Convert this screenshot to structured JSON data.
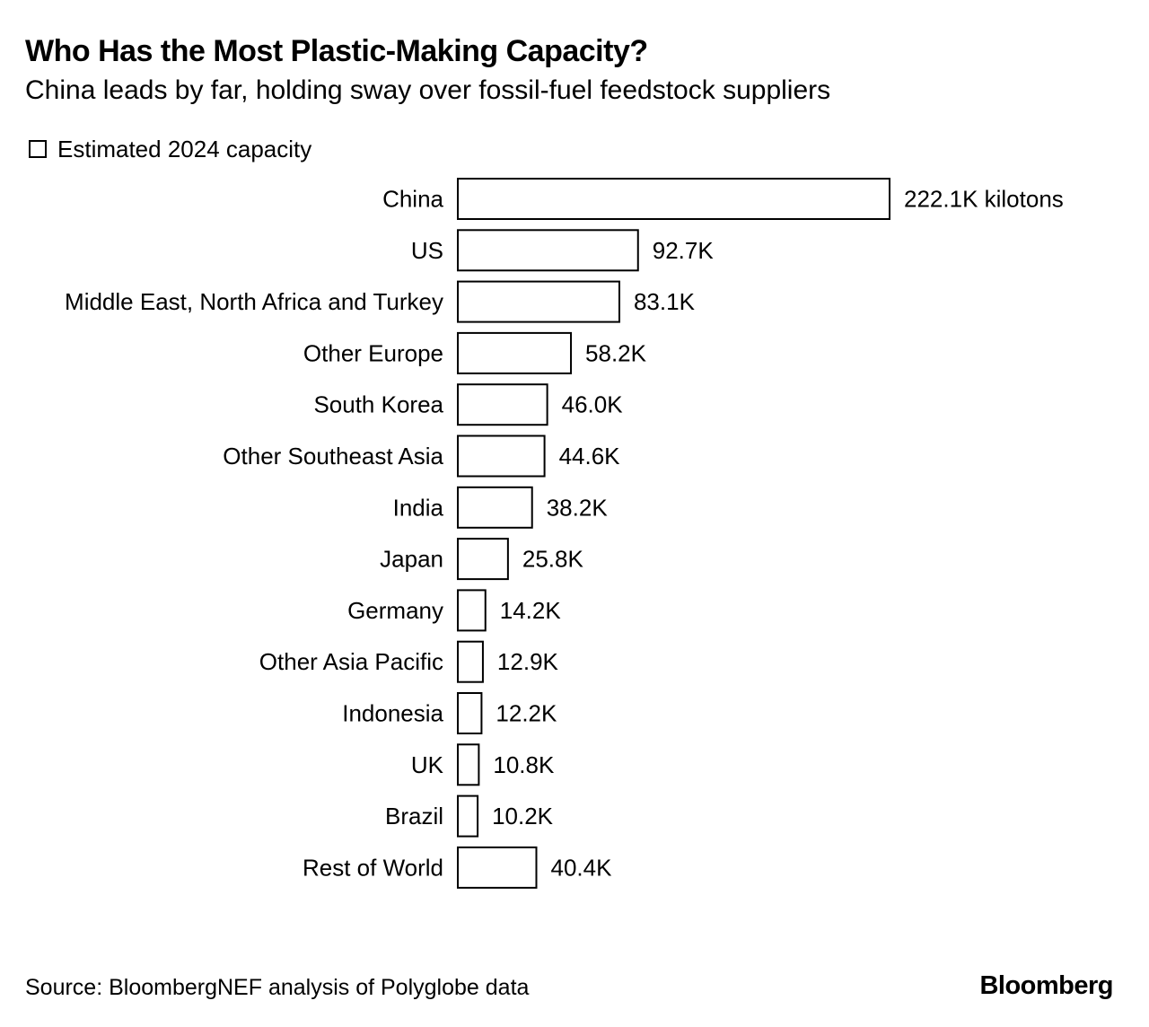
{
  "title": "Who Has the Most Plastic-Making Capacity?",
  "subtitle": "China leads by far, holding sway over fossil-fuel feedstock suppliers",
  "legend_label": "Estimated 2024 capacity",
  "source": "Source: BloombergNEF analysis of Polyglobe data",
  "brand": "Bloomberg",
  "colors": {
    "bar_fill": "#ffffff",
    "bar_stroke": "#000000",
    "text": "#000000",
    "background": "#ffffff"
  },
  "chart_data": {
    "type": "bar",
    "orientation": "horizontal",
    "title": "Who Has the Most Plastic-Making Capacity?",
    "subtitle": "China leads by far, holding sway over fossil-fuel feedstock suppliers",
    "unit": "kilotons",
    "categories": [
      "China",
      "US",
      "Middle East, North Africa and Turkey",
      "Other Europe",
      "South Korea",
      "Other Southeast Asia",
      "India",
      "Japan",
      "Germany",
      "Other Asia Pacific",
      "Indonesia",
      "UK",
      "Brazil",
      "Rest of World"
    ],
    "series": [
      {
        "name": "Estimated 2024 capacity",
        "values": [
          222.1,
          92.7,
          83.1,
          58.2,
          46.0,
          44.6,
          38.2,
          25.8,
          14.2,
          12.9,
          12.2,
          10.8,
          10.2,
          40.4
        ]
      }
    ],
    "value_labels": [
      "222.1K kilotons",
      "92.7K",
      "83.1K",
      "58.2K",
      "46.0K",
      "44.6K",
      "38.2K",
      "25.8K",
      "14.2K",
      "12.9K",
      "12.2K",
      "10.8K",
      "10.2K",
      "40.4K"
    ],
    "xlim": [
      0,
      222.1
    ],
    "grid": false,
    "legend_position": "top-left"
  }
}
